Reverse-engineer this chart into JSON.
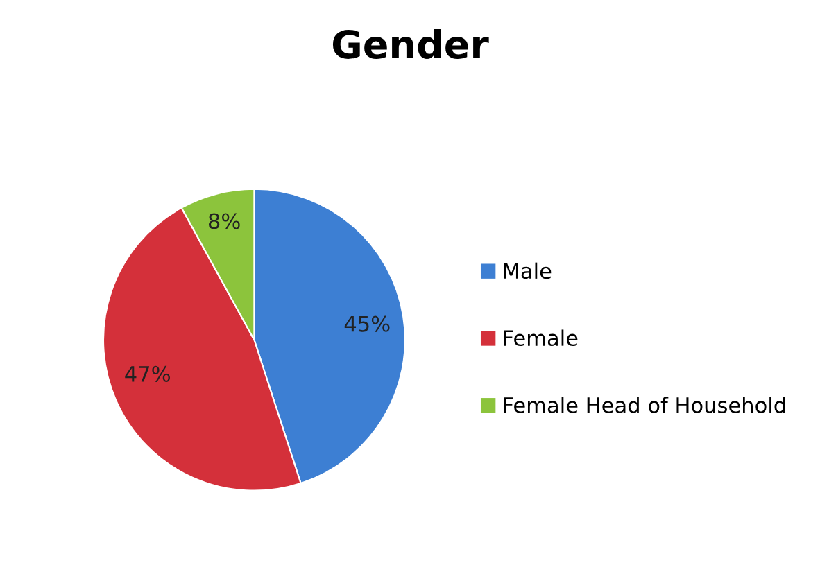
{
  "chart_data": {
    "type": "pie",
    "title": "Gender",
    "categories": [
      "Male",
      "Female",
      "Female Head of Household"
    ],
    "values": [
      45,
      47,
      8
    ],
    "value_labels": [
      "45%",
      "47%",
      "8%"
    ],
    "colors": [
      "#3d7fd3",
      "#d4303a",
      "#8cc43c"
    ],
    "legend": "right"
  }
}
